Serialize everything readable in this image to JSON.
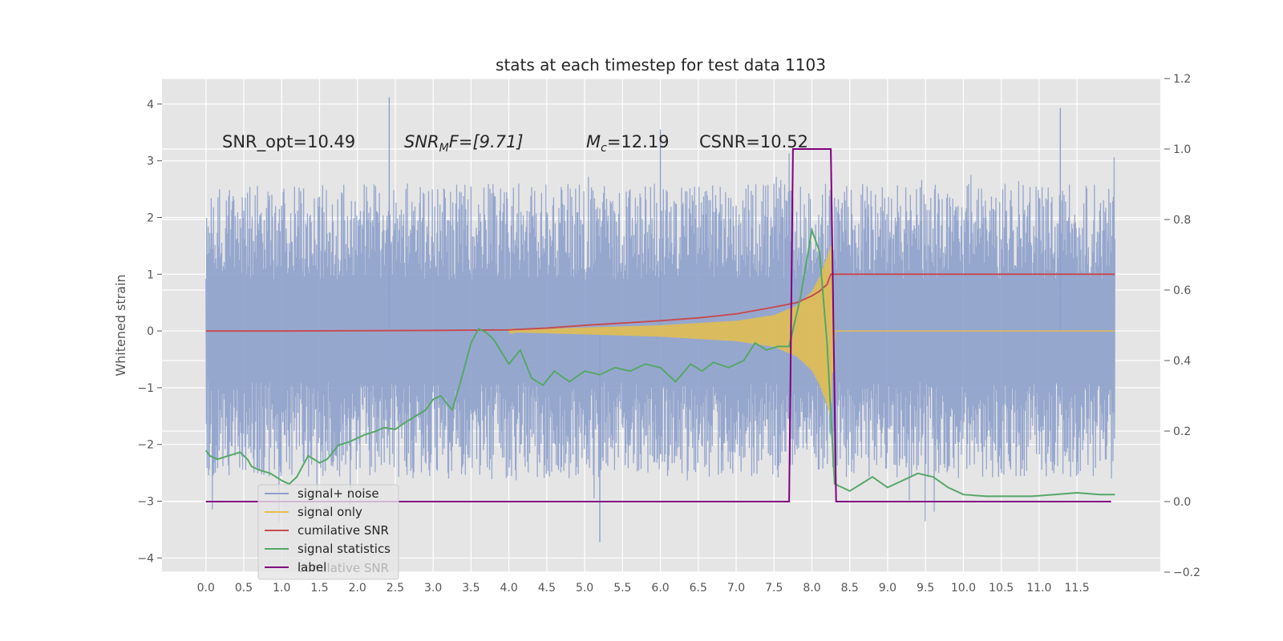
{
  "chart_data": {
    "type": "line",
    "title": "stats at each timestep for test data 1103",
    "ylabel": "Whitened strain",
    "xlim": [
      -0.58,
      12.6
    ],
    "ylim": [
      -4.25,
      4.45
    ],
    "y2lim": [
      -0.2,
      1.2
    ],
    "x_ticks": [
      0.0,
      0.5,
      1.0,
      1.5,
      2.0,
      2.5,
      3.0,
      3.5,
      4.0,
      4.5,
      5.0,
      5.5,
      6.0,
      6.5,
      7.0,
      7.5,
      8.0,
      8.5,
      9.0,
      9.5,
      10.0,
      10.5,
      11.0,
      11.5
    ],
    "x_tick_labels": [
      "0.0",
      "0.5",
      "1.0",
      "1.5",
      "2.0",
      "2.5",
      "3.0",
      "3.5",
      "4.0",
      "4.5",
      "5.0",
      "5.5",
      "6.0",
      "6.5",
      "7.0",
      "7.5",
      "8.0",
      "8.5",
      "9.0",
      "9.5",
      "10.0",
      "10.5",
      "11.0",
      "11.5"
    ],
    "y_ticks": [
      4,
      3,
      2,
      1,
      0,
      -1,
      -2,
      -3,
      -4
    ],
    "y_tick_labels": [
      "4",
      "3",
      "2",
      "1",
      "0",
      "−1",
      "−2",
      "−3",
      "−4"
    ],
    "y2_ticks": [
      1.2,
      1.0,
      0.8,
      0.6,
      0.4,
      0.2,
      0.0,
      -0.2
    ],
    "y2_tick_labels": [
      "1.2",
      "1.0",
      "0.8",
      "0.6",
      "0.4",
      "0.2",
      "0.0",
      "−0.2"
    ],
    "grid": true,
    "legend_position": "lower-left",
    "annotations": [
      {
        "x": 0.2,
        "y": 3.28,
        "text": "SNR_opt=10.49"
      },
      {
        "x": 2.6,
        "y": 3.28,
        "text": "SNR_MF=[9.71]"
      },
      {
        "x": 5.0,
        "y": 3.28,
        "text": "M_c=12.19"
      },
      {
        "x": 6.5,
        "y": 3.28,
        "text": "CSNR=10.52"
      }
    ],
    "annotation_parts": {
      "snr_mf_main": "SNR",
      "snr_mf_sub": "M",
      "snr_mf_rest": "F=[9.71]",
      "mc_main": "M",
      "mc_sub": "c",
      "mc_rest": "=12.19"
    },
    "legend_hidden_text": "cumilative SNR",
    "series": [
      {
        "name": "signal+ noise",
        "axis": "left",
        "color": "#8da0cb",
        "style": "noise",
        "x_range": [
          0.0,
          12.0
        ],
        "typical_peak": 2.6,
        "max_peaks": [
          [
            2.42,
            4.12
          ],
          [
            11.28,
            3.93
          ],
          [
            5.2,
            -3.72
          ],
          [
            6.0,
            3.55
          ]
        ]
      },
      {
        "name": "signal only",
        "axis": "left",
        "color": "#e6c04a",
        "style": "chirp",
        "x": [
          4.0,
          5.0,
          6.0,
          7.0,
          7.5,
          7.8,
          8.0,
          8.1,
          8.2,
          8.25,
          8.3,
          12.0
        ],
        "amplitude": [
          0.02,
          0.06,
          0.1,
          0.18,
          0.28,
          0.45,
          0.7,
          0.95,
          1.3,
          1.5,
          0.0,
          0.0
        ]
      },
      {
        "name": "cumilative SNR",
        "axis": "left",
        "color": "#c44e52",
        "style": "line",
        "x": [
          0.0,
          1.0,
          2.0,
          3.0,
          4.0,
          4.5,
          5.0,
          5.5,
          6.0,
          6.5,
          7.0,
          7.5,
          7.8,
          8.0,
          8.1,
          8.2,
          8.25,
          12.0
        ],
        "y": [
          0.0,
          0.0,
          0.005,
          0.01,
          0.02,
          0.05,
          0.1,
          0.14,
          0.18,
          0.23,
          0.3,
          0.42,
          0.5,
          0.62,
          0.7,
          0.82,
          1.0,
          1.0
        ]
      },
      {
        "name": "signal statistics",
        "axis": "right",
        "color": "#55a868",
        "style": "line",
        "x": [
          0.0,
          0.05,
          0.15,
          0.3,
          0.45,
          0.55,
          0.6,
          0.7,
          0.85,
          1.0,
          1.1,
          1.2,
          1.35,
          1.5,
          1.6,
          1.75,
          1.9,
          2.0,
          2.1,
          2.25,
          2.35,
          2.5,
          2.6,
          2.75,
          2.9,
          3.0,
          3.1,
          3.25,
          3.35,
          3.5,
          3.6,
          3.7,
          3.8,
          4.0,
          4.15,
          4.3,
          4.45,
          4.6,
          4.8,
          5.0,
          5.2,
          5.4,
          5.6,
          5.8,
          6.0,
          6.2,
          6.4,
          6.55,
          6.7,
          6.9,
          7.1,
          7.25,
          7.4,
          7.55,
          7.7,
          7.85,
          8.0,
          8.1,
          8.2,
          8.3,
          8.4,
          8.5,
          8.65,
          8.8,
          9.0,
          9.2,
          9.4,
          9.6,
          9.8,
          10.0,
          10.3,
          10.6,
          10.9,
          11.2,
          11.5,
          11.8,
          12.0
        ],
        "y": [
          0.145,
          0.13,
          0.12,
          0.13,
          0.14,
          0.12,
          0.1,
          0.09,
          0.08,
          0.06,
          0.05,
          0.07,
          0.13,
          0.11,
          0.12,
          0.16,
          0.17,
          0.18,
          0.19,
          0.2,
          0.21,
          0.205,
          0.22,
          0.24,
          0.26,
          0.29,
          0.3,
          0.26,
          0.33,
          0.45,
          0.49,
          0.48,
          0.46,
          0.39,
          0.43,
          0.35,
          0.33,
          0.37,
          0.34,
          0.37,
          0.36,
          0.38,
          0.37,
          0.39,
          0.38,
          0.34,
          0.39,
          0.37,
          0.395,
          0.38,
          0.4,
          0.45,
          0.43,
          0.44,
          0.44,
          0.58,
          0.77,
          0.71,
          0.45,
          0.05,
          0.04,
          0.03,
          0.05,
          0.07,
          0.04,
          0.06,
          0.08,
          0.07,
          0.04,
          0.02,
          0.015,
          0.015,
          0.015,
          0.02,
          0.025,
          0.02,
          0.02
        ]
      },
      {
        "name": "label",
        "axis": "right",
        "color": "#800080",
        "style": "line",
        "x": [
          0.0,
          7.7,
          7.75,
          8.25,
          8.32,
          11.95
        ],
        "y": [
          0.0,
          0.0,
          1.0,
          1.0,
          0.0,
          0.0
        ]
      }
    ]
  }
}
